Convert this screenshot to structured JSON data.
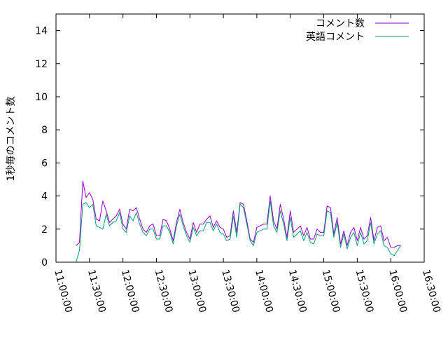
{
  "chart_data": {
    "type": "line",
    "ylabel": "1秒毎のコメント数",
    "xlabel": "",
    "ylim": [
      0,
      15
    ],
    "y_ticks": [
      0,
      2,
      4,
      6,
      8,
      10,
      12,
      14
    ],
    "x_range": [
      "11:00:00",
      "16:30:00"
    ],
    "x_ticks": [
      "11:00:00",
      "11:30:00",
      "12:00:00",
      "12:30:00",
      "13:00:00",
      "13:30:00",
      "14:00:00",
      "14:30:00",
      "15:00:00",
      "15:30:00",
      "16:00:00",
      "16:30:00"
    ],
    "legend_position": "top-right",
    "grid": false,
    "series": [
      {
        "name": "コメント数",
        "color": "#9400d3",
        "points": [
          [
            "11:18:00",
            1.0
          ],
          [
            "11:21:00",
            1.2
          ],
          [
            "11:24:00",
            4.9
          ],
          [
            "11:27:00",
            3.9
          ],
          [
            "11:30:00",
            4.2
          ],
          [
            "11:33:00",
            3.8
          ],
          [
            "11:36:00",
            2.6
          ],
          [
            "11:39:00",
            2.5
          ],
          [
            "11:42:00",
            3.7
          ],
          [
            "11:45:00",
            3.1
          ],
          [
            "11:48:00",
            2.4
          ],
          [
            "11:51:00",
            2.6
          ],
          [
            "11:54:00",
            2.8
          ],
          [
            "11:57:00",
            3.2
          ],
          [
            "12:00:00",
            2.3
          ],
          [
            "12:03:00",
            2.0
          ],
          [
            "12:06:00",
            3.2
          ],
          [
            "12:09:00",
            3.1
          ],
          [
            "12:12:00",
            3.3
          ],
          [
            "12:15:00",
            2.6
          ],
          [
            "12:18:00",
            2.0
          ],
          [
            "12:21:00",
            1.8
          ],
          [
            "12:24:00",
            2.2
          ],
          [
            "12:27:00",
            2.3
          ],
          [
            "12:30:00",
            1.6
          ],
          [
            "12:33:00",
            1.6
          ],
          [
            "12:36:00",
            2.6
          ],
          [
            "12:39:00",
            2.5
          ],
          [
            "12:42:00",
            2.0
          ],
          [
            "12:45:00",
            1.3
          ],
          [
            "12:48:00",
            2.4
          ],
          [
            "12:51:00",
            3.2
          ],
          [
            "12:54:00",
            2.4
          ],
          [
            "12:57:00",
            1.8
          ],
          [
            "13:00:00",
            1.4
          ],
          [
            "13:03:00",
            2.4
          ],
          [
            "13:06:00",
            1.8
          ],
          [
            "13:09:00",
            2.3
          ],
          [
            "13:12:00",
            2.3
          ],
          [
            "13:15:00",
            2.6
          ],
          [
            "13:18:00",
            2.8
          ],
          [
            "13:21:00",
            2.1
          ],
          [
            "13:24:00",
            2.5
          ],
          [
            "13:27:00",
            2.1
          ],
          [
            "13:30:00",
            2.0
          ],
          [
            "13:33:00",
            1.5
          ],
          [
            "13:36:00",
            1.6
          ],
          [
            "13:39:00",
            3.1
          ],
          [
            "13:42:00",
            1.8
          ],
          [
            "13:45:00",
            3.6
          ],
          [
            "13:48:00",
            3.5
          ],
          [
            "13:51:00",
            2.5
          ],
          [
            "13:54:00",
            1.4
          ],
          [
            "13:57:00",
            1.2
          ],
          [
            "14:00:00",
            2.1
          ],
          [
            "14:03:00",
            2.2
          ],
          [
            "14:06:00",
            2.3
          ],
          [
            "14:09:00",
            2.3
          ],
          [
            "14:12:00",
            4.0
          ],
          [
            "14:15:00",
            2.5
          ],
          [
            "14:18:00",
            2.0
          ],
          [
            "14:21:00",
            3.5
          ],
          [
            "14:24:00",
            2.6
          ],
          [
            "14:27:00",
            1.5
          ],
          [
            "14:30:00",
            3.1
          ],
          [
            "14:33:00",
            1.8
          ],
          [
            "14:36:00",
            2.0
          ],
          [
            "14:39:00",
            2.2
          ],
          [
            "14:42:00",
            1.6
          ],
          [
            "14:45:00",
            2.1
          ],
          [
            "14:48:00",
            1.4
          ],
          [
            "14:51:00",
            1.4
          ],
          [
            "14:54:00",
            2.0
          ],
          [
            "14:57:00",
            1.8
          ],
          [
            "15:00:00",
            1.8
          ],
          [
            "15:03:00",
            3.4
          ],
          [
            "15:06:00",
            3.3
          ],
          [
            "15:09:00",
            1.7
          ],
          [
            "15:12:00",
            2.7
          ],
          [
            "15:15:00",
            1.1
          ],
          [
            "15:18:00",
            1.9
          ],
          [
            "15:21:00",
            1.0
          ],
          [
            "15:24:00",
            1.8
          ],
          [
            "15:27:00",
            2.1
          ],
          [
            "15:30:00",
            1.3
          ],
          [
            "15:33:00",
            2.1
          ],
          [
            "15:36:00",
            1.4
          ],
          [
            "15:39:00",
            1.6
          ],
          [
            "15:42:00",
            2.7
          ],
          [
            "15:45:00",
            1.3
          ],
          [
            "15:48:00",
            2.1
          ],
          [
            "15:51:00",
            2.2
          ],
          [
            "15:54:00",
            1.3
          ],
          [
            "15:57:00",
            1.5
          ],
          [
            "16:00:00",
            0.9
          ],
          [
            "16:03:00",
            0.9
          ],
          [
            "16:06:00",
            1.0
          ],
          [
            "16:09:00",
            1.0
          ]
        ]
      },
      {
        "name": "英語コメント",
        "color": "#009e73",
        "points": [
          [
            "11:18:00",
            0.0
          ],
          [
            "11:21:00",
            0.7
          ],
          [
            "11:24:00",
            3.5
          ],
          [
            "11:27:00",
            3.6
          ],
          [
            "11:30:00",
            3.3
          ],
          [
            "11:33:00",
            3.5
          ],
          [
            "11:36:00",
            2.2
          ],
          [
            "11:39:00",
            2.1
          ],
          [
            "11:42:00",
            2.0
          ],
          [
            "11:45:00",
            2.9
          ],
          [
            "11:48:00",
            2.2
          ],
          [
            "11:51:00",
            2.4
          ],
          [
            "11:54:00",
            2.5
          ],
          [
            "11:57:00",
            3.0
          ],
          [
            "12:00:00",
            2.0
          ],
          [
            "12:03:00",
            1.8
          ],
          [
            "12:06:00",
            2.8
          ],
          [
            "12:09:00",
            2.5
          ],
          [
            "12:12:00",
            3.0
          ],
          [
            "12:15:00",
            2.3
          ],
          [
            "12:18:00",
            1.8
          ],
          [
            "12:21:00",
            1.6
          ],
          [
            "12:24:00",
            2.0
          ],
          [
            "12:27:00",
            2.0
          ],
          [
            "12:30:00",
            1.4
          ],
          [
            "12:33:00",
            1.4
          ],
          [
            "12:36:00",
            2.2
          ],
          [
            "12:39:00",
            2.2
          ],
          [
            "12:42:00",
            1.8
          ],
          [
            "12:45:00",
            1.1
          ],
          [
            "12:48:00",
            2.2
          ],
          [
            "12:51:00",
            2.9
          ],
          [
            "12:54:00",
            2.2
          ],
          [
            "12:57:00",
            1.6
          ],
          [
            "13:00:00",
            1.2
          ],
          [
            "13:03:00",
            2.1
          ],
          [
            "13:06:00",
            1.6
          ],
          [
            "13:09:00",
            1.9
          ],
          [
            "13:12:00",
            1.9
          ],
          [
            "13:15:00",
            2.4
          ],
          [
            "13:18:00",
            2.4
          ],
          [
            "13:21:00",
            1.9
          ],
          [
            "13:24:00",
            2.3
          ],
          [
            "13:27:00",
            1.8
          ],
          [
            "13:30:00",
            1.7
          ],
          [
            "13:33:00",
            1.3
          ],
          [
            "13:36:00",
            1.4
          ],
          [
            "13:39:00",
            2.8
          ],
          [
            "13:42:00",
            1.5
          ],
          [
            "13:45:00",
            3.5
          ],
          [
            "13:48:00",
            3.3
          ],
          [
            "13:51:00",
            2.3
          ],
          [
            "13:54:00",
            1.3
          ],
          [
            "13:57:00",
            1.0
          ],
          [
            "14:00:00",
            1.8
          ],
          [
            "14:03:00",
            1.9
          ],
          [
            "14:06:00",
            2.0
          ],
          [
            "14:09:00",
            2.0
          ],
          [
            "14:12:00",
            3.7
          ],
          [
            "14:15:00",
            2.2
          ],
          [
            "14:18:00",
            1.8
          ],
          [
            "14:21:00",
            3.1
          ],
          [
            "14:24:00",
            2.3
          ],
          [
            "14:27:00",
            1.3
          ],
          [
            "14:30:00",
            2.7
          ],
          [
            "14:33:00",
            1.5
          ],
          [
            "14:36:00",
            1.7
          ],
          [
            "14:39:00",
            1.9
          ],
          [
            "14:42:00",
            1.3
          ],
          [
            "14:45:00",
            1.8
          ],
          [
            "14:48:00",
            1.2
          ],
          [
            "14:51:00",
            1.1
          ],
          [
            "14:54:00",
            1.7
          ],
          [
            "14:57:00",
            1.6
          ],
          [
            "15:00:00",
            1.6
          ],
          [
            "15:03:00",
            3.1
          ],
          [
            "15:06:00",
            3.0
          ],
          [
            "15:09:00",
            1.5
          ],
          [
            "15:12:00",
            2.4
          ],
          [
            "15:15:00",
            0.9
          ],
          [
            "15:18:00",
            1.7
          ],
          [
            "15:21:00",
            0.8
          ],
          [
            "15:24:00",
            1.5
          ],
          [
            "15:27:00",
            1.8
          ],
          [
            "15:30:00",
            1.0
          ],
          [
            "15:33:00",
            1.8
          ],
          [
            "15:36:00",
            1.1
          ],
          [
            "15:39:00",
            1.3
          ],
          [
            "15:42:00",
            2.4
          ],
          [
            "15:45:00",
            1.1
          ],
          [
            "15:48:00",
            1.7
          ],
          [
            "15:51:00",
            1.9
          ],
          [
            "15:54:00",
            1.0
          ],
          [
            "15:57:00",
            0.9
          ],
          [
            "16:00:00",
            0.5
          ],
          [
            "16:03:00",
            0.4
          ],
          [
            "16:06:00",
            0.7
          ],
          [
            "16:09:00",
            1.0
          ]
        ]
      }
    ]
  }
}
